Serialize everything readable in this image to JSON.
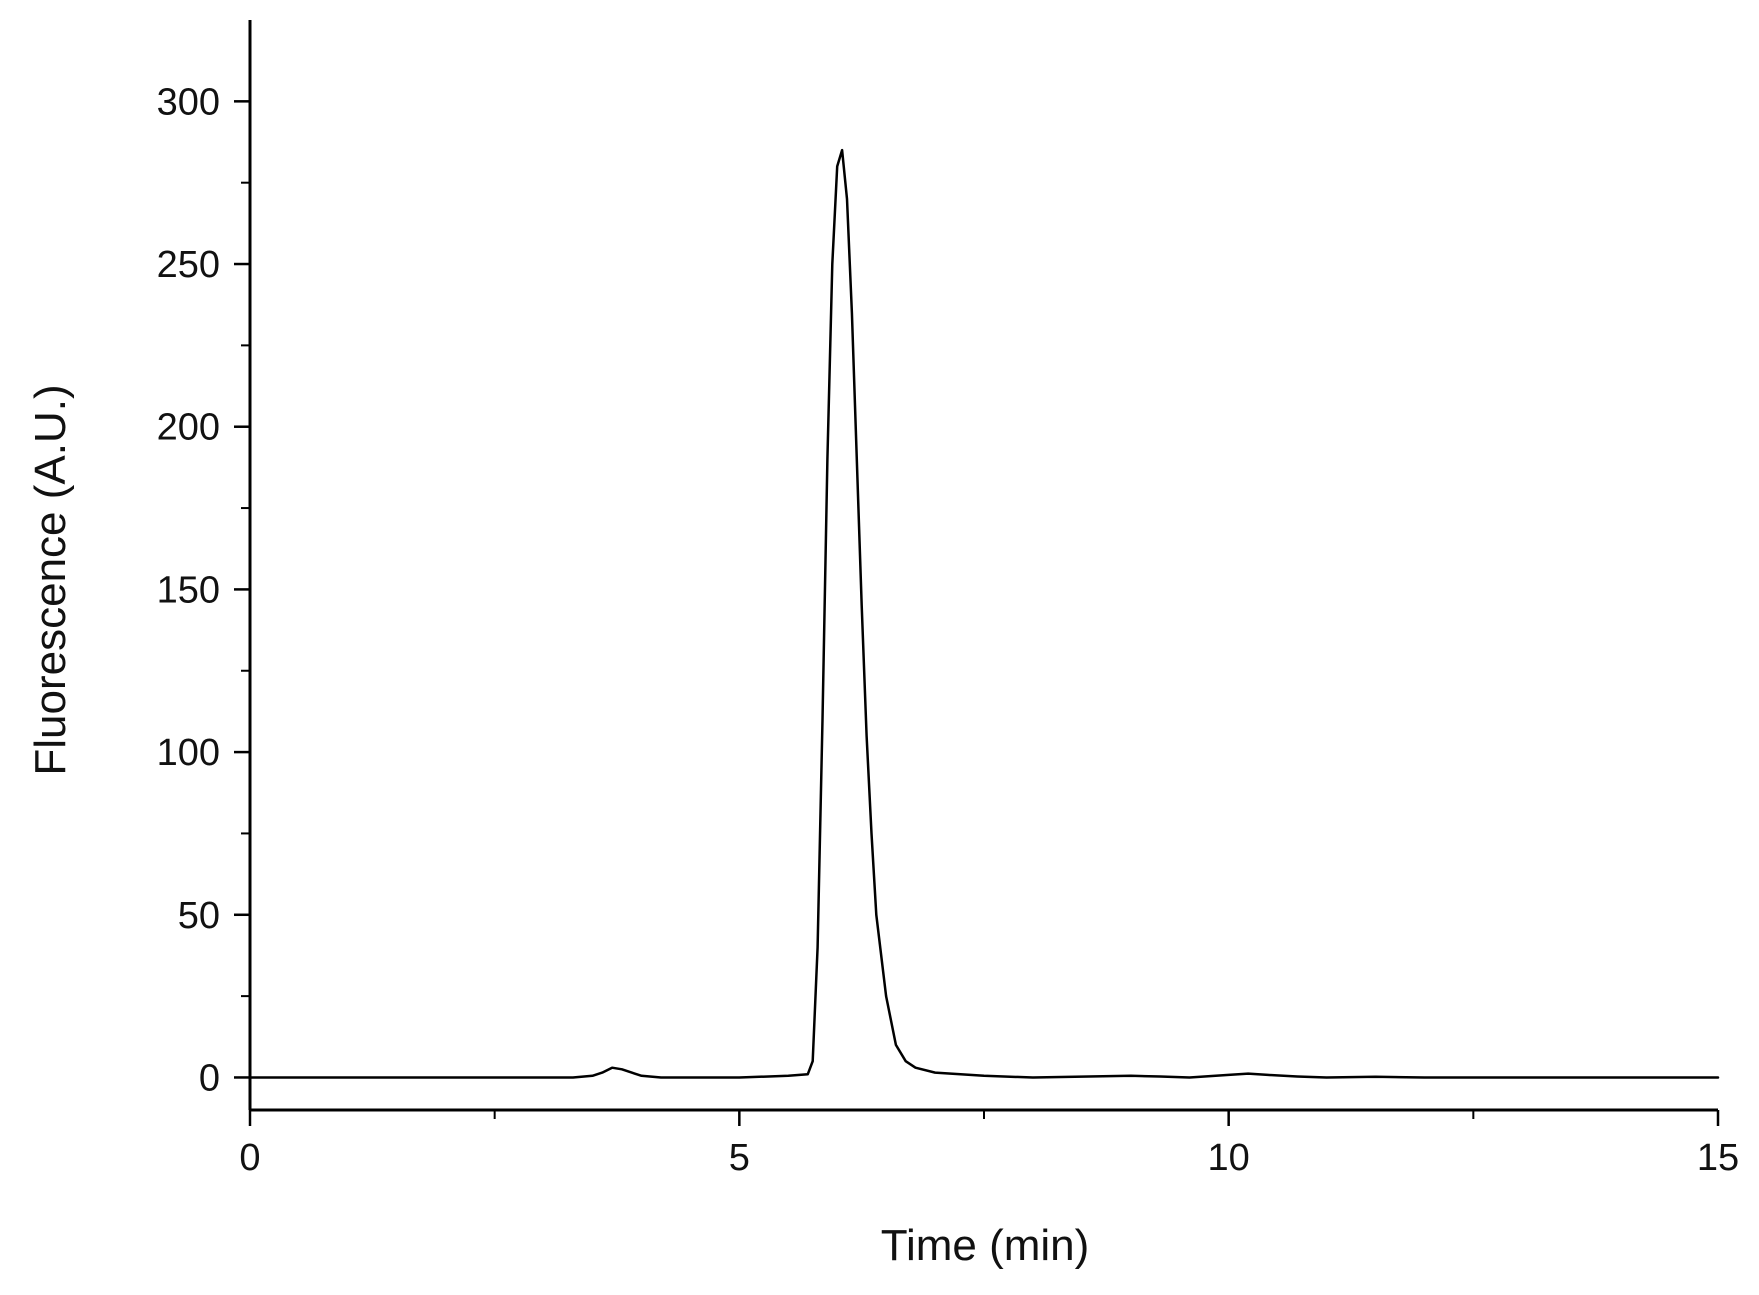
{
  "chart_data": {
    "type": "line",
    "title": "",
    "xlabel": "Time (min)",
    "ylabel": "Fluorescence (A.U.)",
    "xlim": [
      0,
      15
    ],
    "ylim": [
      -10,
      325
    ],
    "x_ticks": [
      0,
      5,
      10,
      15
    ],
    "x_tick_labels": [
      "0",
      "5",
      "10",
      "15"
    ],
    "x_minor_ticks": [
      2.5,
      7.5,
      12.5
    ],
    "y_ticks": [
      0,
      50,
      100,
      150,
      200,
      250,
      300
    ],
    "y_tick_labels": [
      "0",
      "50",
      "100",
      "150",
      "200",
      "250",
      "300"
    ],
    "y_minor_ticks": [
      25,
      75,
      125,
      175,
      225,
      275
    ],
    "baseline_y": -10,
    "grid": false,
    "legend": "none",
    "line_color": "#000000",
    "series": [
      {
        "x": [
          0,
          1,
          2,
          3,
          3.3,
          3.5,
          3.6,
          3.7,
          3.8,
          3.9,
          4.0,
          4.2,
          4.5,
          5.0,
          5.5,
          5.7,
          5.75,
          5.8,
          5.85,
          5.9,
          5.95,
          6.0,
          6.05,
          6.1,
          6.15,
          6.2,
          6.25,
          6.3,
          6.35,
          6.4,
          6.5,
          6.6,
          6.7,
          6.8,
          7.0,
          7.5,
          8,
          9,
          9.3,
          9.6,
          10.0,
          10.2,
          10.4,
          10.7,
          11,
          11.5,
          12,
          13,
          14,
          15
        ],
        "y": [
          0,
          0,
          0,
          0,
          0,
          0.5,
          1.5,
          3,
          2.5,
          1.5,
          0.5,
          0,
          0,
          0,
          0.5,
          1,
          5,
          40,
          110,
          190,
          250,
          280,
          285,
          270,
          235,
          190,
          145,
          105,
          75,
          50,
          25,
          10,
          5,
          3,
          1.5,
          0.5,
          0,
          0.5,
          0.3,
          0,
          0.8,
          1.2,
          0.8,
          0.3,
          0,
          0.2,
          0,
          0,
          0,
          0
        ]
      }
    ]
  }
}
